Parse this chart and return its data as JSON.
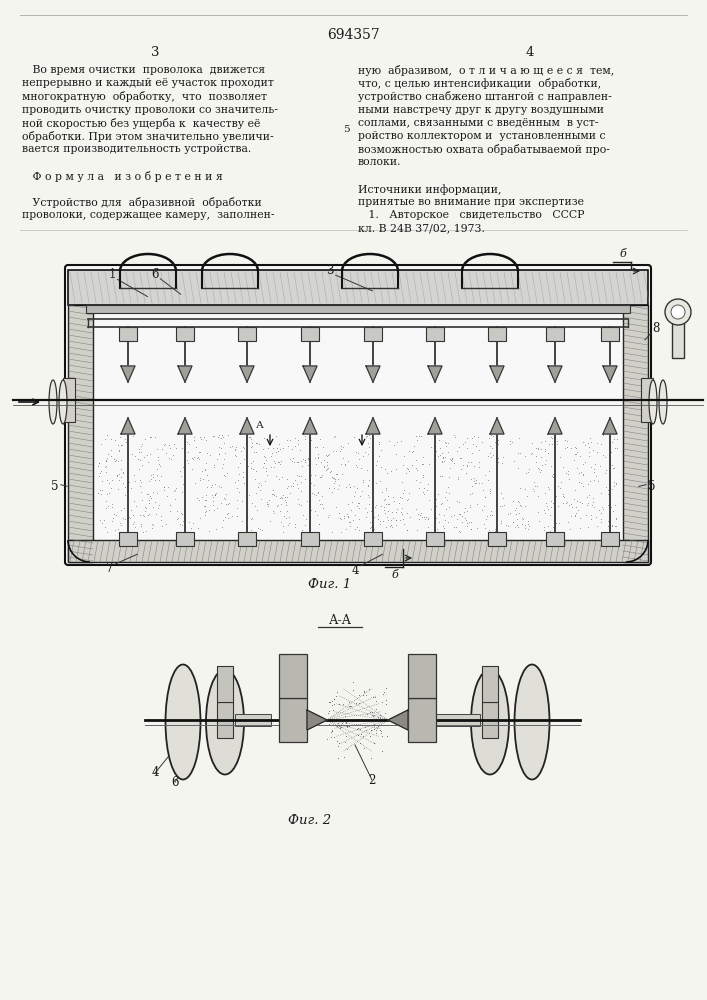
{
  "patent_number": "694357",
  "page_left": "3",
  "page_right": "4",
  "background_color": "#f5f5f0",
  "text_color": "#1a1a1a",
  "col1_lines": [
    "   Во время очистки  проволока  движется",
    "непрерывно и каждый её участок проходит",
    "многократную  обработку,  что  позволяет",
    "проводить очистку проволоки со значитель-",
    "ной скоростью без ущерба к  качеству её",
    "обработки. При этом значительно увеличи-",
    "вается производительность устройства.",
    "",
    "   Ф о р м у л а   и з о б р е т е н и я",
    "",
    "   Устройство для  абразивной  обработки",
    "проволоки, содержащее камеру,  заполнен-"
  ],
  "col2_lines": [
    "ную  абразивом,  о т л и ч а ю щ е е с я  тем,",
    "что, с целью интенсификации  обработки,",
    "устройство снабжено штангой с направлен-",
    "ными навстречу друг к другу воздушными",
    "соплами, связанными с введённым  в уст-",
    "ройство коллектором и  установленными с",
    "возможностью охвата обрабатываемой про-",
    "волоки.",
    "",
    "Источники информации,",
    "принятые во внимание при экспертизе",
    "   1.   Авторское   свидетельство   СССР",
    "кл. В 24В 37/02, 1973."
  ],
  "line5_marker": "5",
  "fig1_label": "Фиг. 1",
  "fig2_label": "Фиг. 2",
  "section_label": "А-А"
}
